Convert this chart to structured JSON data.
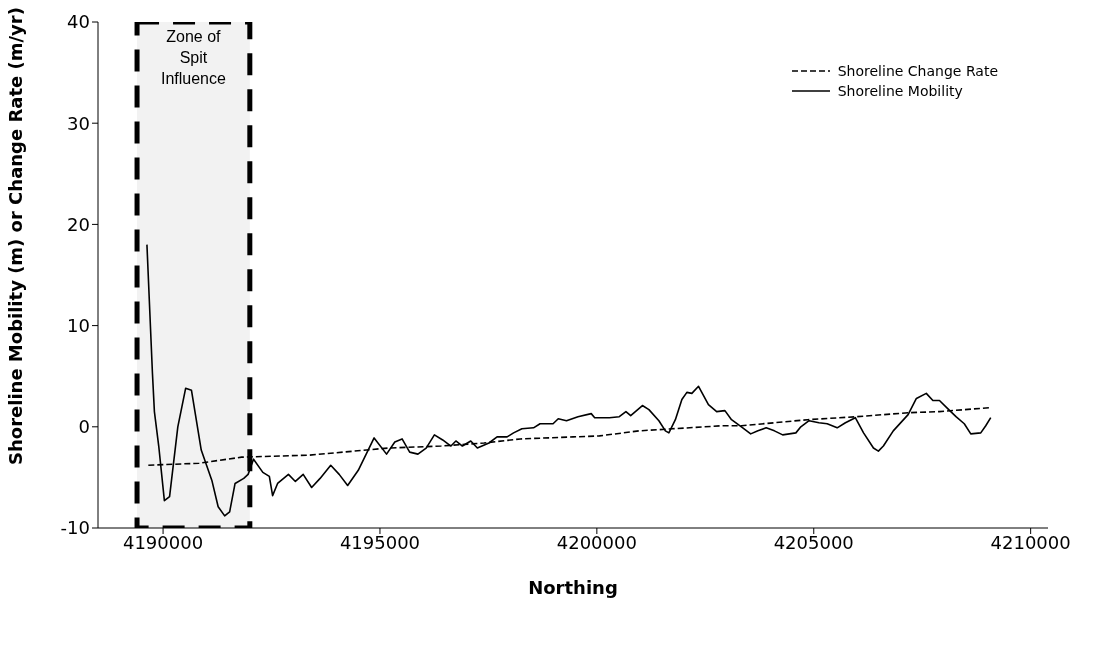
{
  "chart_data": {
    "type": "line",
    "xlabel": "Northing",
    "ylabel": "Shoreline Mobility (m) or Change Rate (m/yr)",
    "xlim": [
      4188500,
      4210400
    ],
    "xticks": [
      4190000,
      4195000,
      4200000,
      4205000,
      4210000
    ],
    "ylim": [
      -10,
      40
    ],
    "yticks": [
      -10,
      0,
      10,
      20,
      30,
      40
    ],
    "grid": false,
    "legend": "top right",
    "marker": "none",
    "bands": [
      {
        "axis": "x",
        "from": 4189400,
        "to": 4192000,
        "label": "Zone of Spit Influence",
        "color": "#f2f2f2"
      }
    ],
    "series": [
      {
        "name": "Shoreline Change Rate",
        "color": "#000000",
        "line_style": "dashed",
        "x": [
          4189660,
          4190830,
          4191810,
          4193375,
          4195190,
          4196410,
          4197400,
          4198235,
          4199450,
          4200060,
          4200975,
          4201735,
          4202870,
          4203333,
          4204855,
          4205996,
          4207214,
          4207898,
          4209080
        ],
        "values": [
          -3.8,
          -3.6,
          -3.0,
          -2.8,
          -2.1,
          -1.9,
          -1.6,
          -1.2,
          -1.0,
          -0.9,
          -0.4,
          -0.2,
          0.1,
          0.1,
          0.7,
          1.0,
          1.4,
          1.5,
          1.9
        ]
      },
      {
        "name": "Shoreline Mobility",
        "color": "#000000",
        "line_style": "solid",
        "x": [
          4189628,
          4189755,
          4189800,
          4189900,
          4190030,
          4190150,
          4190340,
          4190520,
          4190655,
          4190880,
          4191125,
          4191270,
          4191420,
          4191535,
          4191660,
          4191860,
          4191960,
          4192085,
          4192300,
          4192450,
          4192525,
          4192640,
          4192890,
          4193050,
          4193230,
          4193425,
          4193620,
          4193865,
          4194060,
          4194255,
          4194500,
          4194865,
          4195152,
          4195342,
          4195510,
          4195685,
          4195875,
          4196065,
          4196255,
          4196446,
          4196636,
          4196750,
          4196900,
          4197093,
          4197245,
          4197512,
          4197700,
          4197930,
          4198080,
          4198272,
          4198540,
          4198690,
          4198990,
          4199110,
          4199300,
          4199565,
          4199870,
          4199950,
          4200290,
          4200517,
          4200670,
          4200780,
          4201050,
          4201200,
          4201430,
          4201580,
          4201660,
          4201810,
          4201960,
          4202075,
          4202190,
          4202344,
          4202572,
          4202762,
          4202952,
          4203104,
          4203333,
          4203546,
          4203713,
          4203903,
          4204093,
          4204284,
          4204588,
          4204702,
          4204892,
          4205120,
          4205310,
          4205540,
          4205730,
          4205958,
          4206148,
          4206376,
          4206490,
          4206605,
          4206833,
          4207175,
          4207366,
          4207594,
          4207746,
          4207898,
          4208088,
          4208279,
          4208470,
          4208620,
          4208850,
          4208965,
          4209080
        ],
        "values": [
          18.0,
          5.3,
          1.5,
          -1.9,
          -7.3,
          -6.9,
          0,
          3.8,
          3.6,
          -2.3,
          -5.3,
          -7.9,
          -8.8,
          -8.4,
          -5.6,
          -5.1,
          -4.7,
          -3.2,
          -4.5,
          -4.9,
          -6.8,
          -5.6,
          -4.7,
          -5.4,
          -4.7,
          -6.0,
          -5.1,
          -3.8,
          -4.7,
          -5.8,
          -4.3,
          -1.1,
          -2.7,
          -1.5,
          -1.2,
          -2.5,
          -2.7,
          -2.1,
          -0.8,
          -1.3,
          -1.9,
          -1.4,
          -1.9,
          -1.4,
          -2.1,
          -1.6,
          -1.0,
          -1.0,
          -0.6,
          -0.2,
          -0.1,
          0.3,
          0.3,
          0.8,
          0.6,
          1.0,
          1.3,
          0.9,
          0.9,
          1.0,
          1.5,
          1.1,
          2.1,
          1.7,
          0.6,
          -0.4,
          -0.6,
          0.7,
          2.7,
          3.4,
          3.3,
          4.0,
          2.2,
          1.5,
          1.6,
          0.7,
          0,
          -0.7,
          -0.4,
          -0.1,
          -0.4,
          -0.8,
          -0.6,
          0,
          0.6,
          0.4,
          0.3,
          -0.1,
          0.4,
          0.9,
          -0.6,
          -2.1,
          -2.4,
          -1.9,
          -0.4,
          1.2,
          2.8,
          3.3,
          2.6,
          2.6,
          1.8,
          1.0,
          0.3,
          -0.7,
          -0.6,
          0.1,
          0.9
        ]
      }
    ]
  }
}
